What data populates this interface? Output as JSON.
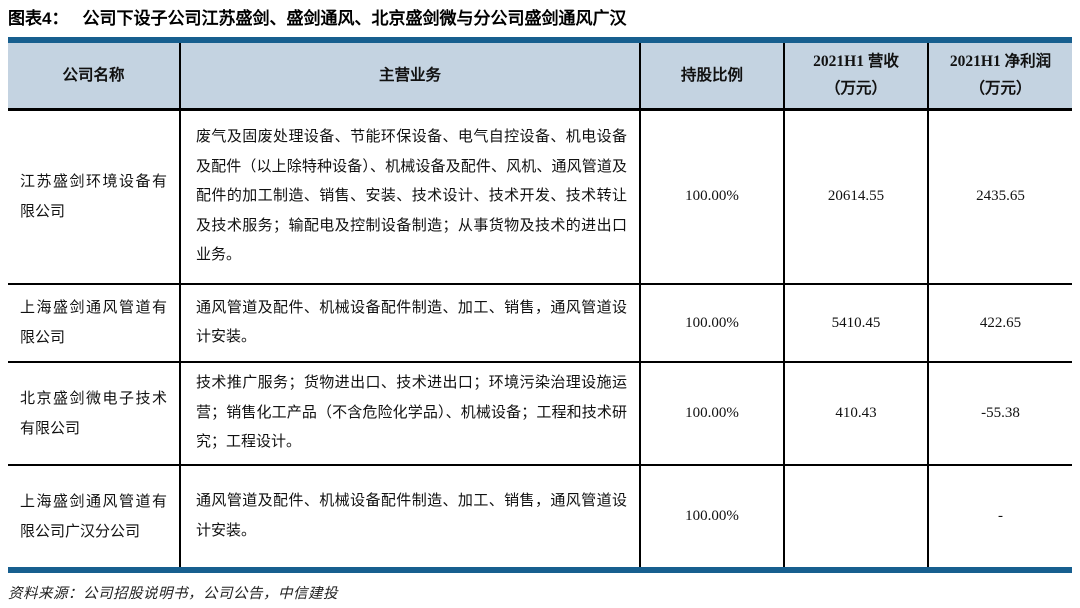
{
  "title": {
    "label": "图表4：",
    "text": "公司下设子公司江苏盛剑、盛剑通风、北京盛剑微与分公司盛剑通风广汉"
  },
  "table": {
    "columns": [
      {
        "label": "公司名称",
        "sub": ""
      },
      {
        "label": "主营业务",
        "sub": ""
      },
      {
        "label": "持股比例",
        "sub": ""
      },
      {
        "label": "2021H1 营收",
        "sub": "（万元）"
      },
      {
        "label": "2021H1 净利润",
        "sub": "（万元）"
      }
    ],
    "rows": [
      {
        "name": "江苏盛剑环境设备有限公司",
        "business": "废气及固废处理设备、节能环保设备、电气自控设备、机电设备及配件（以上除特种设备）、机械设备及配件、风机、通风管道及配件的加工制造、销售、安装、技术设计、技术开发、技术转让及技术服务；输配电及控制设备制造；从事货物及技术的进出口业务。",
        "shareholding": "100.00%",
        "revenue": "20614.55",
        "net_profit": "2435.65"
      },
      {
        "name": "上海盛剑通风管道有限公司",
        "business": "通风管道及配件、机械设备配件制造、加工、销售，通风管道设计安装。",
        "shareholding": "100.00%",
        "revenue": "5410.45",
        "net_profit": "422.65"
      },
      {
        "name": "北京盛剑微电子技术有限公司",
        "business": "技术推广服务；货物进出口、技术进出口；环境污染治理设施运营；销售化工产品（不含危险化学品）、机械设备；工程和技术研究；工程设计。",
        "shareholding": "100.00%",
        "revenue": "410.43",
        "net_profit": "-55.38"
      },
      {
        "name": "上海盛剑通风管道有限公司广汉分公司",
        "business": "通风管道及配件、机械设备配件制造、加工、销售，通风管道设计安装。",
        "shareholding": "100.00%",
        "revenue": "",
        "net_profit": "-"
      }
    ]
  },
  "source": "资料来源：公司招股说明书，公司公告，中信建投",
  "colors": {
    "accent_border": "#175f8f",
    "header_bg": "#c4d3e1",
    "grid_line": "#000000"
  }
}
